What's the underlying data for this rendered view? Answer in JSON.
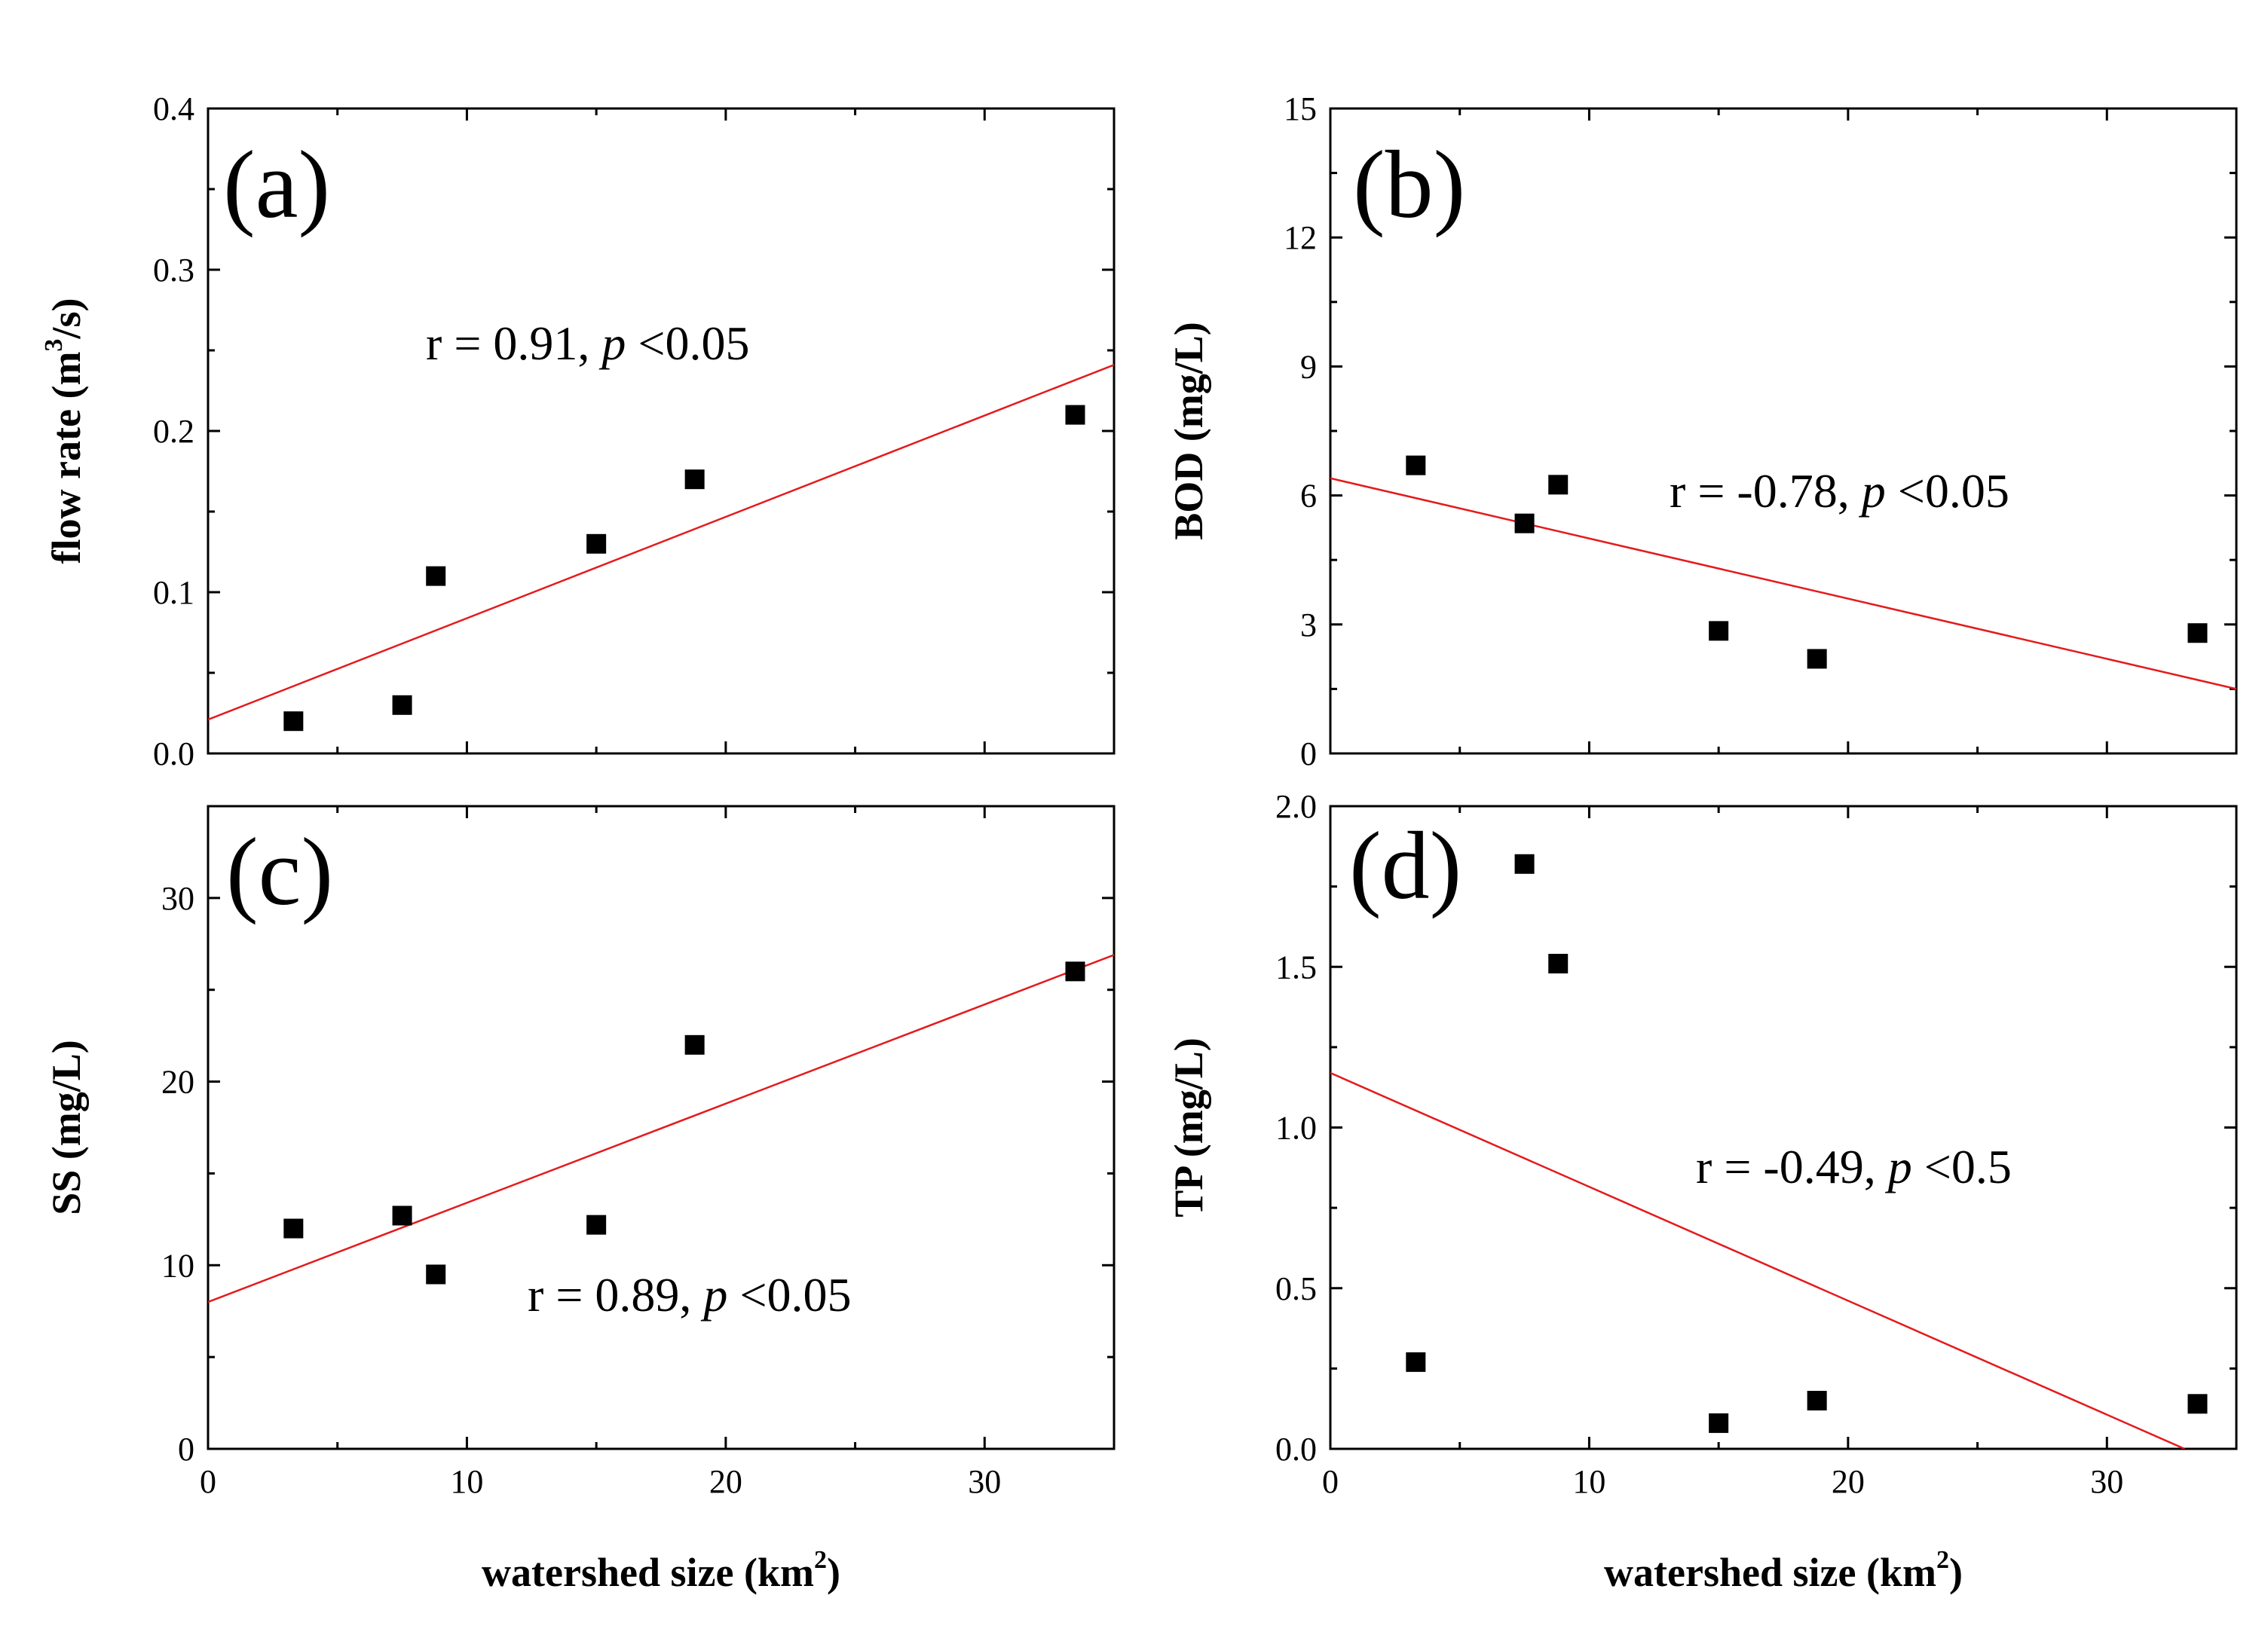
{
  "colors": {
    "fit_line": "#e41a1c",
    "points": "#000000",
    "axes": "#000000"
  },
  "chart_data": [
    {
      "type": "scatter",
      "panel_label": "(a)",
      "ylabel_main": "flow rate (m",
      "ylabel_sup": "3",
      "ylabel_tail": "/s)",
      "xlabel_main": "",
      "xlabel_sup": "",
      "xlabel_tail": "",
      "annotation": {
        "prefix": "r = 0.91, ",
        "italic": "p",
        "suffix": " <0.05"
      },
      "xlim": [
        0,
        35
      ],
      "ylim": [
        0,
        0.4
      ],
      "xticks": [],
      "xtick_labels": [],
      "yticks": [
        0,
        0.1,
        0.2,
        0.3,
        0.4
      ],
      "ytick_labels": [
        "0.0",
        "0.1",
        "0.2",
        "0.3",
        "0.4"
      ],
      "x": [
        3.3,
        7.5,
        8.8,
        15.0,
        18.8,
        33.5
      ],
      "y": [
        0.02,
        0.03,
        0.11,
        0.13,
        0.17,
        0.21
      ],
      "fit": {
        "x": [
          0,
          35
        ],
        "y": [
          0.021,
          0.241
        ]
      }
    },
    {
      "type": "scatter",
      "panel_label": "(b)",
      "ylabel_main": "BOD (mg/L)",
      "ylabel_sup": "",
      "ylabel_tail": "",
      "xlabel_main": "",
      "xlabel_sup": "",
      "xlabel_tail": "",
      "annotation": {
        "prefix": "r = -0.78, ",
        "italic": "p",
        "suffix": " <0.05"
      },
      "xlim": [
        0,
        35
      ],
      "ylim": [
        0,
        15
      ],
      "xticks": [],
      "xtick_labels": [],
      "yticks": [
        0,
        3,
        6,
        9,
        12,
        15
      ],
      "ytick_labels": [
        "0",
        "3",
        "6",
        "9",
        "12",
        "15"
      ],
      "x": [
        3.3,
        7.5,
        8.8,
        15.0,
        18.8,
        33.5
      ],
      "y": [
        6.7,
        5.35,
        6.25,
        2.85,
        2.2,
        2.8
      ],
      "fit": {
        "x": [
          0,
          35
        ],
        "y": [
          6.4,
          1.5
        ]
      }
    },
    {
      "type": "scatter",
      "panel_label": "(c)",
      "ylabel_main": "SS (mg/L)",
      "ylabel_sup": "",
      "ylabel_tail": "",
      "xlabel_main": "watershed size (km",
      "xlabel_sup": "2",
      "xlabel_tail": ")",
      "annotation": {
        "prefix": "r = 0.89, ",
        "italic": "p",
        "suffix": " <0.05"
      },
      "xlim": [
        0,
        35
      ],
      "ylim": [
        0,
        35
      ],
      "xticks": [
        0,
        10,
        20,
        30
      ],
      "xtick_labels": [
        "0",
        "10",
        "20",
        "30"
      ],
      "yticks": [
        0,
        10,
        20,
        30
      ],
      "ytick_labels": [
        "0",
        "10",
        "20",
        "30"
      ],
      "x": [
        3.3,
        7.5,
        8.8,
        15.0,
        18.8,
        33.5
      ],
      "y": [
        12.0,
        12.7,
        9.5,
        12.2,
        22.0,
        26.0
      ],
      "fit": {
        "x": [
          0,
          35
        ],
        "y": [
          8.0,
          26.9
        ]
      }
    },
    {
      "type": "scatter",
      "panel_label": "(d)",
      "ylabel_main": "TP (mg/L)",
      "ylabel_sup": "",
      "ylabel_tail": "",
      "xlabel_main": "watershed size (km",
      "xlabel_sup": "2",
      "xlabel_tail": ")",
      "annotation": {
        "prefix": "r = -0.49, ",
        "italic": "p",
        "suffix": " <0.5"
      },
      "xlim": [
        0,
        35
      ],
      "ylim": [
        0,
        2.0
      ],
      "xticks": [
        0,
        10,
        20,
        30
      ],
      "xtick_labels": [
        "0",
        "10",
        "20",
        "30"
      ],
      "yticks": [
        0,
        0.5,
        1.0,
        1.5,
        2.0
      ],
      "ytick_labels": [
        "0.0",
        "0.5",
        "1.0",
        "1.5",
        "2.0"
      ],
      "x": [
        3.3,
        7.5,
        8.8,
        15.0,
        18.8,
        33.5
      ],
      "y": [
        0.27,
        1.82,
        1.51,
        0.08,
        0.15,
        0.14
      ],
      "fit": {
        "x": [
          0,
          33.0
        ],
        "y": [
          1.17,
          0.0
        ]
      }
    }
  ]
}
